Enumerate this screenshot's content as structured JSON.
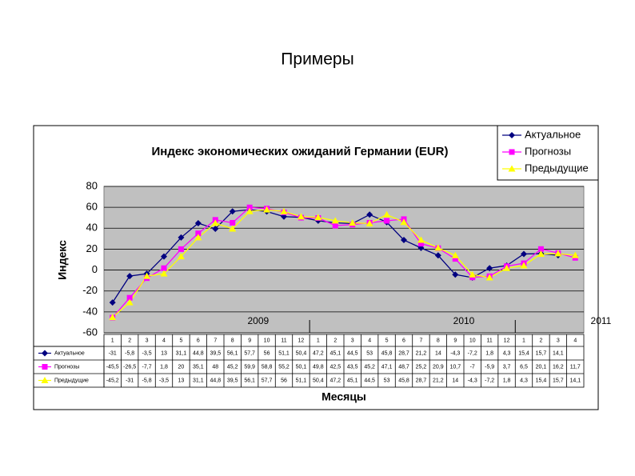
{
  "slide_title": "Примеры",
  "chart_data": {
    "type": "line",
    "title": "Индекс экономических ожиданий Германии  (EUR)",
    "ylabel": "Индекс",
    "xlabel": "Месяцы",
    "categories": [
      "1",
      "2",
      "3",
      "4",
      "5",
      "6",
      "7",
      "8",
      "9",
      "10",
      "11",
      "12",
      "1",
      "2",
      "3",
      "4",
      "5",
      "6",
      "7",
      "8",
      "9",
      "10",
      "11",
      "12",
      "1",
      "2",
      "3",
      "4"
    ],
    "years": [
      "2009",
      "2010",
      "2011"
    ],
    "ylim": [
      -60,
      80
    ],
    "yticks": [
      -60,
      -40,
      -20,
      0,
      20,
      40,
      60,
      80
    ],
    "grid": true,
    "legend": "top-right",
    "series": [
      {
        "name": "Актуальное",
        "color": "#000080",
        "marker": "diamond",
        "values": [
          -31,
          -5.8,
          -3.5,
          13,
          31.1,
          44.8,
          39.5,
          56.1,
          57.7,
          56,
          51.1,
          50.4,
          47.2,
          45.1,
          44.5,
          53,
          45.8,
          28.7,
          21.2,
          14,
          -4.3,
          -7.2,
          1.8,
          4.3,
          15.4,
          15.7,
          14.1,
          null
        ],
        "value_labels": [
          "-31",
          "-5,8",
          "-3,5",
          "13",
          "31,1",
          "44,8",
          "39,5",
          "56,1",
          "57,7",
          "56",
          "51,1",
          "50,4",
          "47,2",
          "45,1",
          "44,5",
          "53",
          "45,8",
          "28,7",
          "21,2",
          "14",
          "-4,3",
          "-7,2",
          "1,8",
          "4,3",
          "15,4",
          "15,7",
          "14,1",
          null
        ]
      },
      {
        "name": "Прогнозы",
        "color": "#ff00ff",
        "marker": "square",
        "values": [
          -45.5,
          -26.5,
          -7.7,
          1.8,
          20,
          35.1,
          48,
          45.2,
          59.9,
          58.8,
          55.2,
          50.1,
          49.8,
          42.5,
          43.5,
          45.2,
          47.1,
          48.7,
          25.2,
          20.9,
          10.7,
          -7,
          -5.9,
          3.7,
          6.5,
          20.1,
          16.2,
          11.7
        ],
        "value_labels": [
          "-45,5",
          "-26,5",
          "-7,7",
          "1,8",
          "20",
          "35,1",
          "48",
          "45,2",
          "59,9",
          "58,8",
          "55,2",
          "50,1",
          "49,8",
          "42,5",
          "43,5",
          "45,2",
          "47,1",
          "48,7",
          "25,2",
          "20,9",
          "10,7",
          "-7",
          "-5,9",
          "3,7",
          "6,5",
          "20,1",
          "16,2",
          "11,7"
        ]
      },
      {
        "name": "Предыдущие",
        "color": "#ffff00",
        "marker": "triangle",
        "values": [
          -45.2,
          -31,
          -5.8,
          -3.5,
          13,
          31.1,
          44.8,
          39.5,
          56.1,
          57.7,
          56,
          51.1,
          50.4,
          47.2,
          45.1,
          44.5,
          53,
          45.8,
          28.7,
          21.2,
          14,
          -4.3,
          -7.2,
          1.8,
          4.3,
          15.4,
          15.7,
          14.1
        ],
        "value_labels": [
          "-45,2",
          "-31",
          "-5,8",
          "-3,5",
          "13",
          "31,1",
          "44,8",
          "39,5",
          "56,1",
          "57,7",
          "56",
          "51,1",
          "50,4",
          "47,2",
          "45,1",
          "44,5",
          "53",
          "45,8",
          "28,7",
          "21,2",
          "14",
          "-4,3",
          "-7,2",
          "1,8",
          "4,3",
          "15,4",
          "15,7",
          "14,1"
        ]
      }
    ]
  }
}
